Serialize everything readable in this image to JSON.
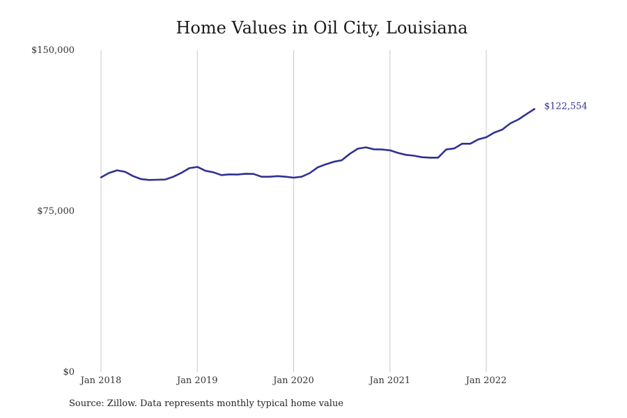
{
  "chart_data": {
    "type": "line",
    "title": "Home Values in Oil City, Louisiana",
    "xlabel": "",
    "ylabel": "",
    "source": "Source: Zillow. Data represents monthly typical home value",
    "ylim": [
      0,
      150000
    ],
    "y_ticks": [
      {
        "value": 0,
        "label": "$0"
      },
      {
        "value": 75000,
        "label": "$75,000"
      },
      {
        "value": 150000,
        "label": "$150,000"
      }
    ],
    "x_ticks": [
      {
        "value": "2018-01",
        "label": "Jan 2018"
      },
      {
        "value": "2019-01",
        "label": "Jan 2019"
      },
      {
        "value": "2020-01",
        "label": "Jan 2020"
      },
      {
        "value": "2021-01",
        "label": "Jan 2021"
      },
      {
        "value": "2022-01",
        "label": "Jan 2022"
      }
    ],
    "x_grid": true,
    "y_grid": false,
    "end_label": "$122,554",
    "series": [
      {
        "color": "#2e3192",
        "x": [
          "2018-01",
          "2018-02",
          "2018-03",
          "2018-04",
          "2018-05",
          "2018-06",
          "2018-07",
          "2018-08",
          "2018-09",
          "2018-10",
          "2018-11",
          "2018-12",
          "2019-01",
          "2019-02",
          "2019-03",
          "2019-04",
          "2019-05",
          "2019-06",
          "2019-07",
          "2019-08",
          "2019-09",
          "2019-10",
          "2019-11",
          "2019-12",
          "2020-01",
          "2020-02",
          "2020-03",
          "2020-04",
          "2020-05",
          "2020-06",
          "2020-07",
          "2020-08",
          "2020-09",
          "2020-10",
          "2020-11",
          "2020-12",
          "2021-01",
          "2021-02",
          "2021-03",
          "2021-04",
          "2021-05",
          "2021-06",
          "2021-07",
          "2021-08",
          "2021-09",
          "2021-10",
          "2021-11",
          "2021-12",
          "2022-01",
          "2022-02",
          "2022-03",
          "2022-04",
          "2022-05",
          "2022-06",
          "2022-07"
        ],
        "values": [
          90700,
          92800,
          94000,
          93300,
          91300,
          89900,
          89500,
          89600,
          89700,
          91000,
          92800,
          95000,
          95600,
          93800,
          93100,
          91800,
          92100,
          92000,
          92400,
          92300,
          91000,
          91000,
          91300,
          91000,
          90600,
          91000,
          92700,
          95400,
          96800,
          98000,
          98700,
          101700,
          104100,
          104700,
          103800,
          103700,
          103300,
          102100,
          101200,
          100800,
          100100,
          99900,
          99900,
          103700,
          104200,
          106400,
          106400,
          108400,
          109400,
          111600,
          113000,
          115900,
          117700,
          120200,
          122554
        ]
      }
    ]
  }
}
